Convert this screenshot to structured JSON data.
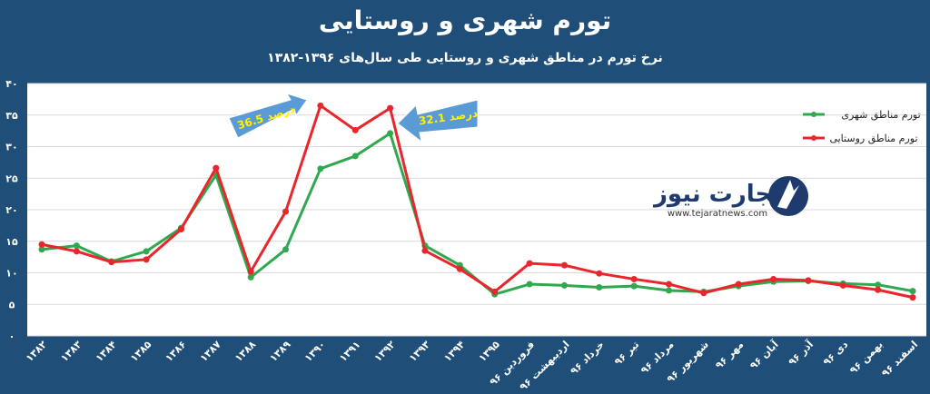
{
  "chart_data": {
    "type": "line",
    "title": "تورم شهری و روستایی",
    "subtitle": "نرخ تورم در مناطق شهری و روستایی طی سال‌های ۱۳۹۶-۱۳۸۲",
    "categories": [
      "۱۳۸۲",
      "۱۳۸۳",
      "۱۳۸۴",
      "۱۳۸۵",
      "۱۳۸۶",
      "۱۳۸۷",
      "۱۳۸۸",
      "۱۳۸۹",
      "۱۳۹۰",
      "۱۳۹۱",
      "۱۳۹۲",
      "۱۳۹۳",
      "۱۳۹۴",
      "۱۳۹۵",
      "فروردین ۹۶",
      "اردیبهشت ۹۶",
      "خرداد ۹۶",
      "تیر ۹۶",
      "مرداد ۹۶",
      "شهریور ۹۶",
      "مهر ۹۶",
      "آبان ۹۶",
      "آذر ۹۶",
      "دی ۹۶",
      "بهمن ۹۶",
      "اسفند ۹۶"
    ],
    "series": [
      {
        "name": "تورم مناطق شهری",
        "color": "#2fa84f",
        "values": [
          13.7,
          14.3,
          11.8,
          13.4,
          17.1,
          25.5,
          9.3,
          13.7,
          26.5,
          28.5,
          32.1,
          14.3,
          11.2,
          6.6,
          8.2,
          8.0,
          7.7,
          7.9,
          7.2,
          7.0,
          7.9,
          8.6,
          8.7,
          8.3,
          8.1,
          7.1
        ]
      },
      {
        "name": "تورم مناطق روستایی",
        "color": "#e8262b",
        "values": [
          14.5,
          13.4,
          11.7,
          12.1,
          16.9,
          26.6,
          10.2,
          19.7,
          36.5,
          32.6,
          36.1,
          13.5,
          10.6,
          7.0,
          11.5,
          11.2,
          9.9,
          9.0,
          8.2,
          6.8,
          8.2,
          9.0,
          8.8,
          8.0,
          7.3,
          6.1
        ]
      }
    ],
    "yticks": [
      "۰",
      "۵",
      "۱۰",
      "۱۵",
      "۲۰",
      "۲۵",
      "۳۰",
      "۳۵",
      "۴۰"
    ],
    "ylim": [
      0,
      40
    ],
    "grid": true,
    "legend_position": "top-right",
    "annotations": [
      {
        "text": "36.5 درصد",
        "category": "۱۳۹۰"
      },
      {
        "text": "32.1 درصد",
        "category": "۱۳۹۲"
      }
    ]
  },
  "logo": {
    "name": "تجارت نیوز",
    "url": "www.tejaratnews.com"
  }
}
